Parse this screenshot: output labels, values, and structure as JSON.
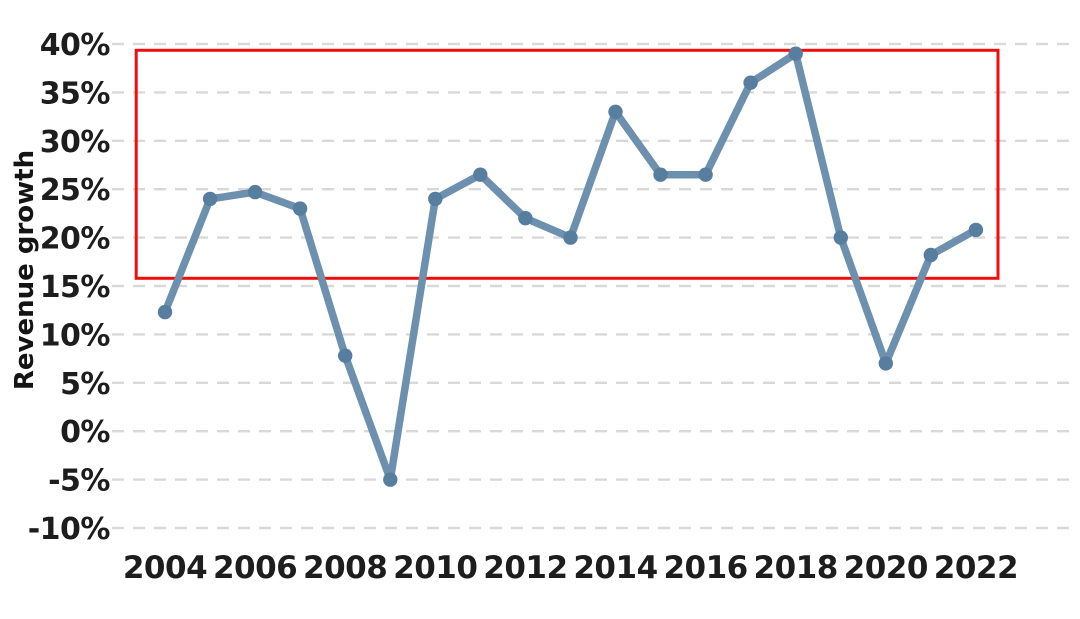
{
  "chart_data": {
    "type": "line",
    "title": "",
    "xlabel": "",
    "ylabel": "Revenue growth",
    "x": [
      2004,
      2005,
      2006,
      2007,
      2008,
      2009,
      2010,
      2011,
      2012,
      2013,
      2014,
      2015,
      2016,
      2017,
      2018,
      2019,
      2020,
      2021,
      2022
    ],
    "series": [
      {
        "name": "Revenue growth",
        "values": [
          12.3,
          24,
          24.7,
          23,
          7.8,
          -5,
          24,
          26.5,
          22,
          20,
          33,
          26.5,
          26.5,
          36,
          39,
          20,
          7,
          18.2,
          20.8
        ],
        "line_color": "#6c90ae",
        "marker_color": "#577e9f",
        "marker": "circle"
      }
    ],
    "ylim": [
      -10,
      40
    ],
    "y_tick_values": [
      40,
      35,
      30,
      25,
      20,
      15,
      10,
      5,
      0,
      -5,
      -10
    ],
    "y_tick_labels": [
      "40%",
      "35%",
      "30%",
      "25%",
      "20%",
      "15%",
      "10%",
      "5%",
      "0%",
      "-5%",
      "-10%"
    ],
    "x_tick_values": [
      2004,
      2006,
      2008,
      2010,
      2012,
      2014,
      2016,
      2018,
      2020,
      2022
    ],
    "x_tick_labels": [
      "2004",
      "2006",
      "2008",
      "2010",
      "2012",
      "2014",
      "2016",
      "2018",
      "2020",
      "2022"
    ],
    "grid": "horizontal-dashed",
    "gridline_color": "#d9d9d9",
    "legend": "none",
    "annotation": {
      "type": "rectangle",
      "description": "red highlight box over growth band above ~16%",
      "color": "#f20d0d",
      "x_start": 2003.36,
      "x_end": 2022.49,
      "y_top": 39.35,
      "y_bottom": 15.8
    }
  }
}
